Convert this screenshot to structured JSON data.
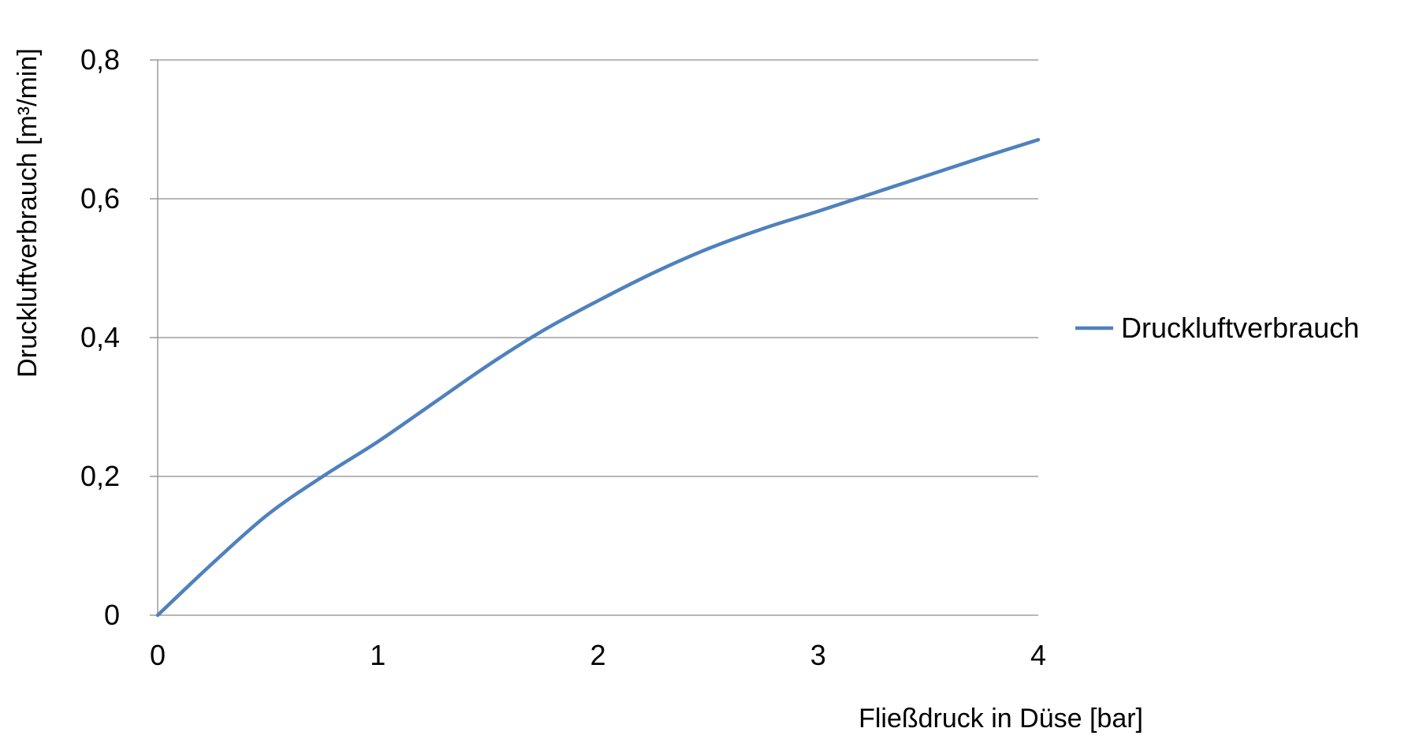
{
  "chart_data": {
    "type": "line",
    "title": "",
    "xlabel": "Fließdruck in Düse [bar]",
    "ylabel": "Druckluftverbrauch [m³/min]",
    "xlim": [
      0,
      4
    ],
    "ylim": [
      0,
      0.8
    ],
    "x_ticks": [
      0,
      1,
      2,
      3,
      4
    ],
    "x_tick_labels": [
      "0",
      "1",
      "2",
      "3",
      "4"
    ],
    "y_ticks": [
      0,
      0.2,
      0.4,
      0.6,
      0.8
    ],
    "y_tick_labels": [
      "0",
      "0,2",
      "0,4",
      "0,6",
      "0,8"
    ],
    "grid": "horizontal",
    "legend_position": "right",
    "series": [
      {
        "name": "Druckluftverbrauch",
        "color": "#4f81bd",
        "x": [
          0,
          0.25,
          0.5,
          0.75,
          1,
          1.25,
          1.5,
          1.75,
          2,
          2.25,
          2.5,
          2.75,
          3,
          3.25,
          3.5,
          3.75,
          4
        ],
        "y": [
          0,
          0.075,
          0.145,
          0.2,
          0.25,
          0.305,
          0.36,
          0.41,
          0.453,
          0.493,
          0.528,
          0.557,
          0.582,
          0.608,
          0.634,
          0.66,
          0.685
        ]
      }
    ]
  }
}
